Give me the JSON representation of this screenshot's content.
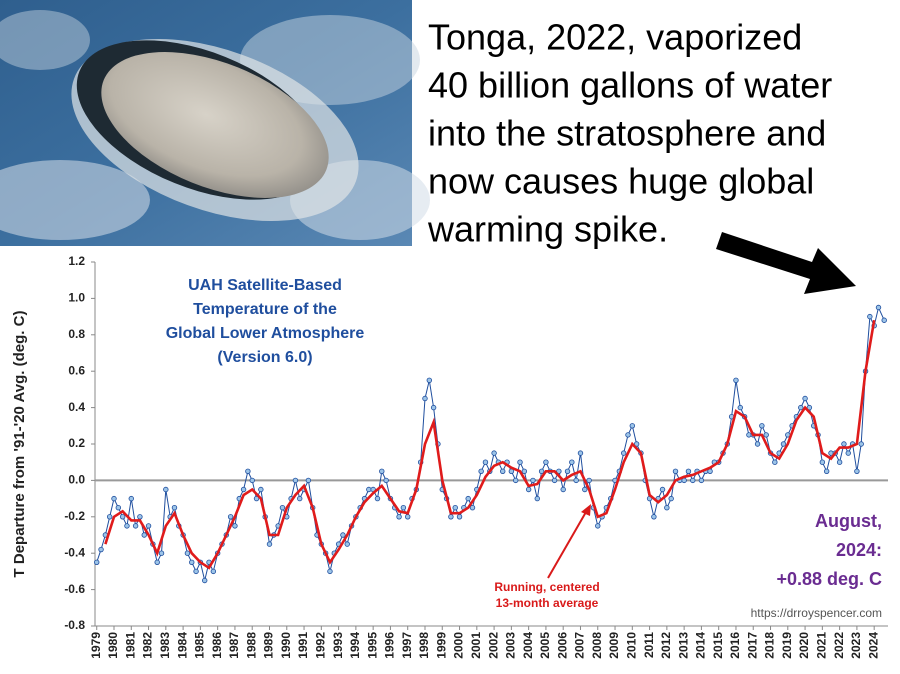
{
  "headline": [
    "Tonga, 2022, vaporized",
    "40 billion gallons of water",
    "into the stratosphere and",
    "now causes huge global",
    "warming spike."
  ],
  "chart_data": {
    "type": "line",
    "title": [
      "UAH Satellite-Based",
      "Temperature of the",
      "Global Lower Atmosphere",
      "(Version 6.0)"
    ],
    "ylabel": "T Departure from '91-'20 Avg. (deg. C)",
    "annotations": {
      "latest": [
        "August,",
        "2024:",
        "+0.88 deg. C"
      ],
      "running": [
        "Running, centered",
        "13-month average"
      ],
      "source": "https://drroyspencer.com"
    },
    "xlim": [
      1978.9,
      2024.8
    ],
    "xticks": [
      1979,
      1980,
      1981,
      1982,
      1983,
      1984,
      1985,
      1986,
      1987,
      1988,
      1989,
      1990,
      1991,
      1992,
      1993,
      1994,
      1995,
      1996,
      1997,
      1998,
      1999,
      2000,
      2001,
      2002,
      2003,
      2004,
      2005,
      2006,
      2007,
      2008,
      2009,
      2010,
      2011,
      2012,
      2013,
      2014,
      2015,
      2016,
      2017,
      2018,
      2019,
      2020,
      2021,
      2022,
      2023,
      2024
    ],
    "ylim": [
      -0.8,
      1.2
    ],
    "yticks": [
      -0.8,
      -0.6,
      -0.4,
      -0.2,
      {
        "value": 0,
        "label": "0.0"
      },
      0.2,
      0.4,
      0.6,
      0.8,
      {
        "value": 1,
        "label": "1.0"
      },
      1.2
    ],
    "zero_line": true,
    "series": [
      {
        "color": "#1f4e9e",
        "marker": true,
        "x": [
          1979,
          1979.25,
          1979.5,
          1979.75,
          1980,
          1980.25,
          1980.5,
          1980.75,
          1981,
          1981.25,
          1981.5,
          1981.75,
          1982,
          1982.25,
          1982.5,
          1982.75,
          1983,
          1983.25,
          1983.5,
          1983.75,
          1984,
          1984.25,
          1984.5,
          1984.75,
          1985,
          1985.25,
          1985.5,
          1985.75,
          1986,
          1986.25,
          1986.5,
          1986.75,
          1987,
          1987.25,
          1987.5,
          1987.75,
          1988,
          1988.25,
          1988.5,
          1988.75,
          1989,
          1989.25,
          1989.5,
          1989.75,
          1990,
          1990.25,
          1990.5,
          1990.75,
          1991,
          1991.25,
          1991.5,
          1991.75,
          1992,
          1992.25,
          1992.5,
          1992.75,
          1993,
          1993.25,
          1993.5,
          1993.75,
          1994,
          1994.25,
          1994.5,
          1994.75,
          1995,
          1995.25,
          1995.5,
          1995.75,
          1996,
          1996.25,
          1996.5,
          1996.75,
          1997,
          1997.25,
          1997.5,
          1997.75,
          1998,
          1998.25,
          1998.5,
          1998.75,
          1999,
          1999.25,
          1999.5,
          1999.75,
          2000,
          2000.25,
          2000.5,
          2000.75,
          2001,
          2001.25,
          2001.5,
          2001.75,
          2002,
          2002.25,
          2002.5,
          2002.75,
          2003,
          2003.25,
          2003.5,
          2003.75,
          2004,
          2004.25,
          2004.5,
          2004.75,
          2005,
          2005.25,
          2005.5,
          2005.75,
          2006,
          2006.25,
          2006.5,
          2006.75,
          2007,
          2007.25,
          2007.5,
          2007.75,
          2008,
          2008.25,
          2008.5,
          2008.75,
          2009,
          2009.25,
          2009.5,
          2009.75,
          2010,
          2010.25,
          2010.5,
          2010.75,
          2011,
          2011.25,
          2011.5,
          2011.75,
          2012,
          2012.25,
          2012.5,
          2012.75,
          2013,
          2013.25,
          2013.5,
          2013.75,
          2014,
          2014.25,
          2014.5,
          2014.75,
          2015,
          2015.25,
          2015.5,
          2015.75,
          2016,
          2016.25,
          2016.5,
          2016.75,
          2017,
          2017.25,
          2017.5,
          2017.75,
          2018,
          2018.25,
          2018.5,
          2018.75,
          2019,
          2019.25,
          2019.5,
          2019.75,
          2020,
          2020.25,
          2020.5,
          2020.75,
          2021,
          2021.25,
          2021.5,
          2021.75,
          2022,
          2022.25,
          2022.5,
          2022.75,
          2023,
          2023.25,
          2023.5,
          2023.75,
          2024,
          2024.25,
          2024.58
        ],
        "values": [
          -0.45,
          -0.38,
          -0.3,
          -0.2,
          -0.1,
          -0.15,
          -0.2,
          -0.25,
          -0.1,
          -0.25,
          -0.2,
          -0.3,
          -0.25,
          -0.35,
          -0.45,
          -0.4,
          -0.05,
          -0.2,
          -0.15,
          -0.25,
          -0.3,
          -0.4,
          -0.45,
          -0.5,
          -0.45,
          -0.55,
          -0.45,
          -0.5,
          -0.4,
          -0.35,
          -0.3,
          -0.2,
          -0.25,
          -0.1,
          -0.05,
          0.05,
          0,
          -0.1,
          -0.05,
          -0.2,
          -0.35,
          -0.3,
          -0.25,
          -0.15,
          -0.2,
          -0.1,
          0,
          -0.1,
          -0.05,
          0,
          -0.15,
          -0.3,
          -0.35,
          -0.4,
          -0.5,
          -0.4,
          -0.35,
          -0.3,
          -0.35,
          -0.25,
          -0.2,
          -0.15,
          -0.1,
          -0.05,
          -0.05,
          -0.1,
          0.05,
          0,
          -0.1,
          -0.15,
          -0.2,
          -0.15,
          -0.2,
          -0.1,
          -0.05,
          0.1,
          0.45,
          0.55,
          0.4,
          0.2,
          -0.05,
          -0.1,
          -0.2,
          -0.15,
          -0.2,
          -0.15,
          -0.1,
          -0.15,
          -0.05,
          0.05,
          0.1,
          0.05,
          0.15,
          0.1,
          0.05,
          0.1,
          0.05,
          0,
          0.1,
          0.05,
          -0.05,
          0,
          -0.1,
          0.05,
          0.1,
          0.05,
          0,
          0.05,
          -0.05,
          0.05,
          0.1,
          0,
          0.15,
          -0.05,
          0,
          -0.15,
          -0.25,
          -0.2,
          -0.15,
          -0.1,
          0,
          0.05,
          0.15,
          0.25,
          0.3,
          0.2,
          0.15,
          0,
          -0.1,
          -0.2,
          -0.1,
          -0.05,
          -0.15,
          -0.1,
          0.05,
          0,
          0,
          0.05,
          0,
          0.05,
          0,
          0.05,
          0.05,
          0.1,
          0.1,
          0.15,
          0.2,
          0.35,
          0.55,
          0.4,
          0.35,
          0.25,
          0.25,
          0.2,
          0.3,
          0.25,
          0.15,
          0.1,
          0.15,
          0.2,
          0.25,
          0.3,
          0.35,
          0.4,
          0.45,
          0.4,
          0.3,
          0.25,
          0.1,
          0.05,
          0.15,
          0.15,
          0.1,
          0.2,
          0.15,
          0.2,
          0.05,
          0.2,
          0.6,
          0.9,
          0.85,
          0.95,
          0.88
        ]
      },
      {
        "color": "#e01b1b",
        "marker": false,
        "x": [
          1979.5,
          1980,
          1980.5,
          1981,
          1981.5,
          1982,
          1982.5,
          1983,
          1983.5,
          1984,
          1984.5,
          1985,
          1985.5,
          1986,
          1986.5,
          1987,
          1987.5,
          1988,
          1988.5,
          1989,
          1989.5,
          1990,
          1990.5,
          1991,
          1991.5,
          1992,
          1992.5,
          1993,
          1993.5,
          1994,
          1994.5,
          1995,
          1995.5,
          1996,
          1996.5,
          1997,
          1997.5,
          1998,
          1998.5,
          1999,
          1999.5,
          2000,
          2000.5,
          2001,
          2001.5,
          2002,
          2002.5,
          2003,
          2003.5,
          2004,
          2004.5,
          2005,
          2005.5,
          2006,
          2006.5,
          2007,
          2007.5,
          2008,
          2008.5,
          2009,
          2009.5,
          2010,
          2010.5,
          2011,
          2011.5,
          2012,
          2012.5,
          2013,
          2013.5,
          2014,
          2014.5,
          2015,
          2015.5,
          2016,
          2016.5,
          2017,
          2017.5,
          2018,
          2018.5,
          2019,
          2019.5,
          2020,
          2020.5,
          2021,
          2021.5,
          2022,
          2022.5,
          2023,
          2023.5,
          2024
        ],
        "values": [
          -0.35,
          -0.2,
          -0.17,
          -0.22,
          -0.22,
          -0.3,
          -0.4,
          -0.25,
          -0.18,
          -0.3,
          -0.4,
          -0.45,
          -0.48,
          -0.4,
          -0.3,
          -0.2,
          -0.08,
          -0.05,
          -0.1,
          -0.3,
          -0.3,
          -0.15,
          -0.08,
          -0.03,
          -0.15,
          -0.35,
          -0.45,
          -0.38,
          -0.3,
          -0.2,
          -0.12,
          -0.07,
          -0.03,
          -0.1,
          -0.17,
          -0.18,
          -0.05,
          0.2,
          0.32,
          0,
          -0.18,
          -0.18,
          -0.15,
          -0.08,
          0.02,
          0.08,
          0.1,
          0.07,
          0.05,
          -0.03,
          -0.02,
          0.05,
          0.05,
          0,
          0.03,
          0.05,
          -0.05,
          -0.2,
          -0.18,
          -0.05,
          0.1,
          0.2,
          0.15,
          -0.08,
          -0.12,
          -0.08,
          0,
          0.02,
          0.03,
          0.05,
          0.07,
          0.1,
          0.2,
          0.38,
          0.35,
          0.25,
          0.25,
          0.15,
          0.12,
          0.2,
          0.33,
          0.4,
          0.35,
          0.15,
          0.12,
          0.18,
          0.18,
          0.2,
          0.6,
          0.88
        ]
      }
    ]
  }
}
